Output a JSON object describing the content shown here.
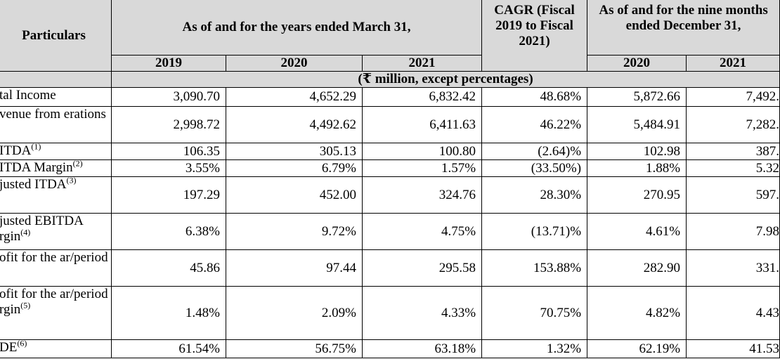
{
  "header": {
    "particulars": "Particulars",
    "years_ended": "As of and for the years ended March 31,",
    "cagr": "CAGR (Fiscal 2019 to Fiscal 2021)",
    "nine_months": "As of and for the nine months ended December 31,",
    "years": [
      "2019",
      "2020",
      "2021"
    ],
    "cagr_sub": "2021)",
    "nine_years": [
      "2020",
      "2021"
    ],
    "units": "(₹ million, except percentages)"
  },
  "rows": [
    {
      "label": "tal Income",
      "sup": "",
      "values": [
        "3,090.70",
        "4,652.29",
        "6,832.42",
        "48.68%",
        "5,872.66",
        "7,492."
      ]
    },
    {
      "label": "venue from erations",
      "sup": "",
      "values": [
        "2,998.72",
        "4,492.62",
        "6,411.63",
        "46.22%",
        "5,484.91",
        "7,282."
      ]
    },
    {
      "label": "ITDA",
      "sup": "(1)",
      "values": [
        "106.35",
        "305.13",
        "100.80",
        "(2.64)%",
        "102.98",
        "387."
      ]
    },
    {
      "label": "ITDA Margin",
      "sup": "(2)",
      "values": [
        "3.55%",
        "6.79%",
        "1.57%",
        "(33.50%)",
        "1.88%",
        "5.32"
      ]
    },
    {
      "label": "justed ITDA",
      "sup": "(3)",
      "values": [
        "197.29",
        "452.00",
        "324.76",
        "28.30%",
        "270.95",
        "597."
      ]
    },
    {
      "label": "justed EBITDA rgin",
      "sup": "(4)",
      "values": [
        "6.38%",
        "9.72%",
        "4.75%",
        "(13.71)%",
        "4.61%",
        "7.98"
      ]
    },
    {
      "label": "ofit for the ar/period",
      "sup": "",
      "values": [
        "45.86",
        "97.44",
        "295.58",
        "153.88%",
        "282.90",
        "331."
      ]
    },
    {
      "label": "ofit for the ar/period rgin",
      "sup": "(5)",
      "values": [
        "1.48%",
        "2.09%",
        "4.33%",
        "70.75%",
        "4.82%",
        "4.43"
      ]
    },
    {
      "label": "DE",
      "sup": "(6)",
      "values": [
        "61.54%",
        "56.75%",
        "63.18%",
        "1.32%",
        "62.19%",
        "41.53"
      ]
    }
  ]
}
